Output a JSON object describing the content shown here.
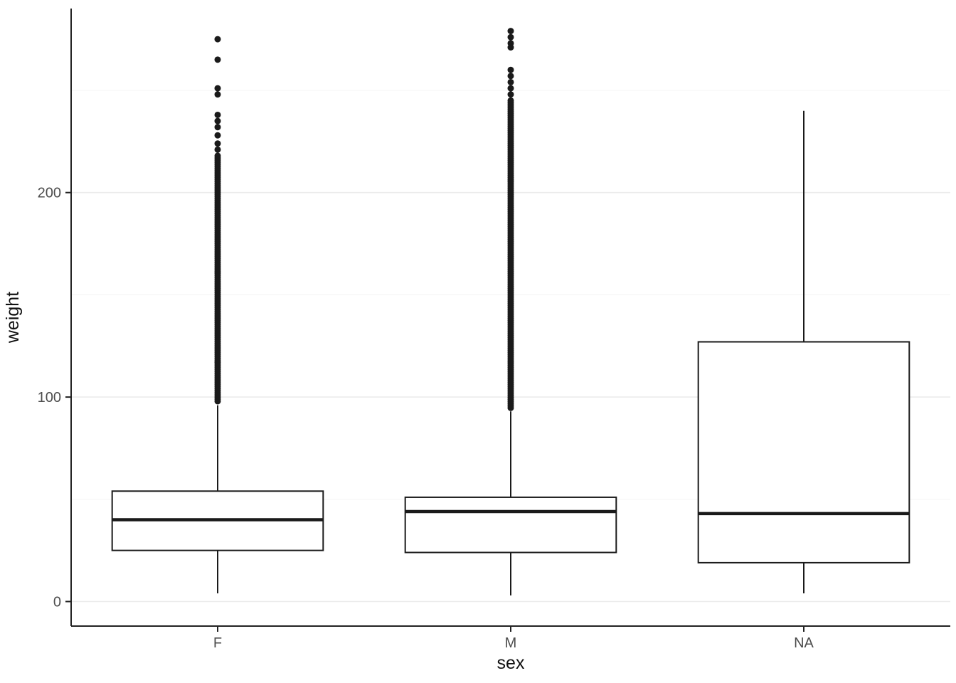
{
  "chart_data": {
    "type": "boxplot",
    "title": "",
    "xlabel": "sex",
    "ylabel": "weight",
    "categories": [
      "F",
      "M",
      "NA"
    ],
    "ylim": [
      -12,
      290
    ],
    "yticks": [
      0,
      100,
      200
    ],
    "yticks_minor": [
      50,
      150,
      250
    ],
    "grid": "horizontal-major-minor",
    "legend": "none",
    "series": [
      {
        "category": "F",
        "lower_whisker": 4,
        "q1": 25,
        "median": 40,
        "q3": 54,
        "upper_whisker": 96,
        "outliers_dense_range": [
          97,
          218
        ],
        "outliers": [
          221,
          224,
          228,
          232,
          235,
          238,
          248,
          251,
          265,
          275
        ]
      },
      {
        "category": "M",
        "lower_whisker": 3,
        "q1": 24,
        "median": 44,
        "q3": 51,
        "upper_whisker": 93,
        "outliers_dense_range": [
          94,
          245
        ],
        "outliers": [
          248,
          251,
          254,
          257,
          260,
          271,
          273,
          276,
          279
        ]
      },
      {
        "category": "NA",
        "lower_whisker": 4,
        "q1": 19,
        "median": 43,
        "q3": 127,
        "upper_whisker": 240,
        "outliers_dense_range": null,
        "outliers": []
      }
    ],
    "style": {
      "stroke_color": "#1a1a1a",
      "median_color": "#1a1a1a",
      "box_fill": "#ffffff",
      "grid_major_color": "#ebebeb",
      "grid_minor_color": "#f6f6f6",
      "axis_line_color": "#222222",
      "tick_label_color": "#4d4d4d",
      "background": "#ffffff"
    }
  }
}
